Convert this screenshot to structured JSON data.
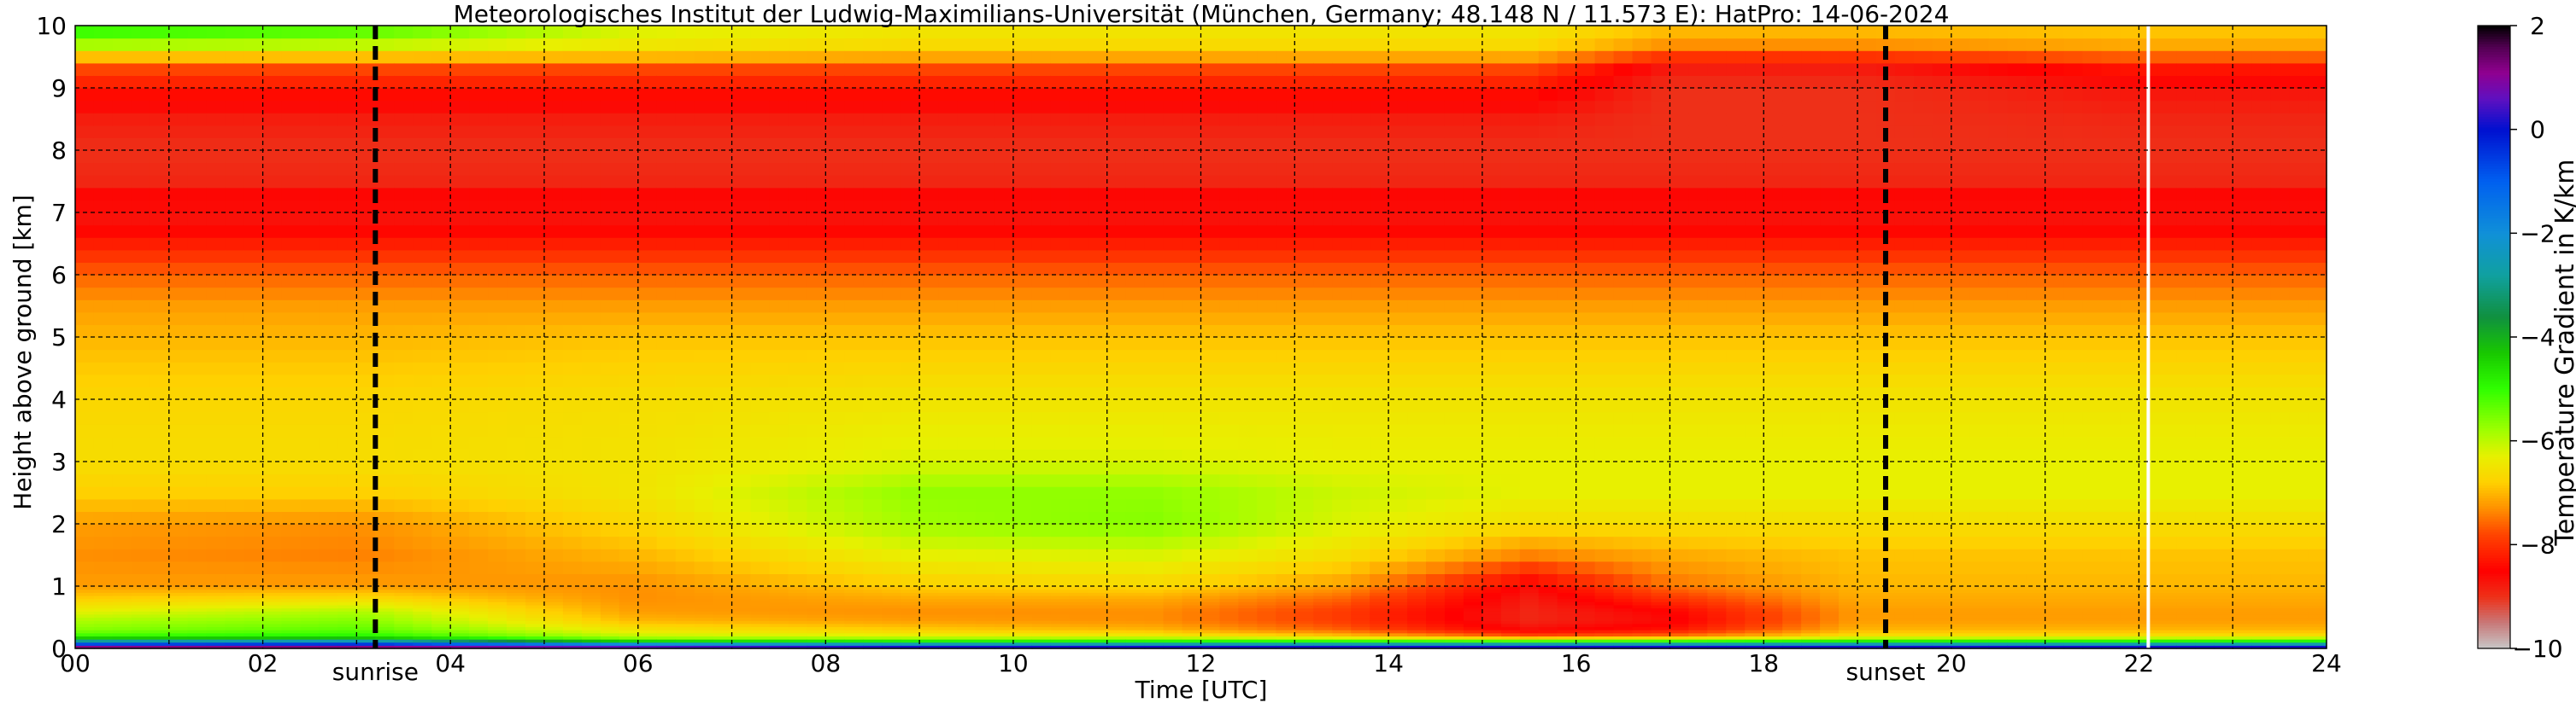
{
  "chart_data": {
    "type": "heatmap",
    "title": "Meteorologisches Institut der Ludwig-Maximilians-Universität (München, Germany; 48.148 N / 11.573 E):    HatPro: 14-06-2024",
    "xlabel": "Time [UTC]",
    "ylabel": "Height above ground [km]",
    "xlim": [
      0,
      24
    ],
    "ylim": [
      0,
      10
    ],
    "x_ticks": [
      "00",
      "02",
      "04",
      "06",
      "08",
      "10",
      "12",
      "14",
      "16",
      "18",
      "20",
      "22",
      "24"
    ],
    "y_ticks": [
      "0",
      "1",
      "2",
      "3",
      "4",
      "5",
      "6",
      "7",
      "8",
      "9",
      "10"
    ],
    "grid": true,
    "markers": [
      {
        "name": "sunrise",
        "label": "sunrise",
        "time": 3.2
      },
      {
        "name": "sunset",
        "label": "sunset",
        "time": 19.3
      }
    ],
    "data_gap_time": 22.1,
    "colorbar": {
      "label": "Temperature Gradient in K/km",
      "range": [
        -10,
        2
      ],
      "ticks": [
        "2",
        "0",
        "−2",
        "−4",
        "−6",
        "−8",
        "−10"
      ],
      "stops": [
        {
          "v": -10.0,
          "c": "#c8c8c8"
        },
        {
          "v": -9.5,
          "c": "#c87878"
        },
        {
          "v": -9.0,
          "c": "#ee3018"
        },
        {
          "v": -8.5,
          "c": "#ff0000"
        },
        {
          "v": -7.8,
          "c": "#ff4400"
        },
        {
          "v": -7.3,
          "c": "#ff9000"
        },
        {
          "v": -6.8,
          "c": "#ffd000"
        },
        {
          "v": -6.3,
          "c": "#e8f000"
        },
        {
          "v": -5.8,
          "c": "#a0ff00"
        },
        {
          "v": -5.0,
          "c": "#30ff00"
        },
        {
          "v": -4.3,
          "c": "#18c800"
        },
        {
          "v": -3.6,
          "c": "#109040"
        },
        {
          "v": -2.8,
          "c": "#10a0a0"
        },
        {
          "v": -2.0,
          "c": "#1090d8"
        },
        {
          "v": -1.0,
          "c": "#0060f0"
        },
        {
          "v": 0.0,
          "c": "#0010d0"
        },
        {
          "v": 0.6,
          "c": "#6010c0"
        },
        {
          "v": 1.1,
          "c": "#900090"
        },
        {
          "v": 1.6,
          "c": "#500050"
        },
        {
          "v": 2.0,
          "c": "#000000"
        }
      ]
    },
    "profile_heights_km": [
      0,
      0.05,
      0.1,
      0.15,
      0.2,
      0.3,
      0.45,
      0.6,
      0.8,
      1.0,
      1.5,
      2.0,
      2.5,
      3.0,
      4.0,
      5.0,
      5.5,
      6.0,
      6.5,
      7.0,
      7.2,
      7.5,
      8.0,
      8.5,
      9.0,
      9.3,
      9.6,
      9.8,
      10.0
    ],
    "profiles": [
      {
        "time": 0,
        "values": [
          1.8,
          0.5,
          -2,
          -3.8,
          -5,
          -5.6,
          -5.9,
          -6.3,
          -6.8,
          -7.2,
          -7.3,
          -7.2,
          -6.8,
          -6.6,
          -6.7,
          -7.0,
          -7.2,
          -7.6,
          -8.2,
          -8.8,
          -8.4,
          -8.9,
          -9.0,
          -8.8,
          -8.3,
          -7.8,
          -6.5,
          -5.2,
          -5.0
        ]
      },
      {
        "time": 3,
        "values": [
          1.8,
          0.6,
          -1.5,
          -3.6,
          -4.8,
          -5.3,
          -5.6,
          -5.9,
          -6.6,
          -7.2,
          -7.4,
          -7.3,
          -6.8,
          -6.6,
          -6.7,
          -7.0,
          -7.2,
          -7.6,
          -8.2,
          -8.8,
          -8.4,
          -8.9,
          -9.0,
          -8.8,
          -8.3,
          -7.8,
          -6.5,
          -5.5,
          -5.2
        ]
      },
      {
        "time": 6,
        "values": [
          1.5,
          -0.5,
          -3.5,
          -5.5,
          -6.0,
          -6.5,
          -7.0,
          -7.2,
          -7.3,
          -7.3,
          -7.0,
          -6.7,
          -6.5,
          -6.5,
          -6.6,
          -6.9,
          -7.2,
          -7.6,
          -8.2,
          -8.8,
          -8.4,
          -8.9,
          -9.0,
          -8.8,
          -8.3,
          -7.8,
          -6.6,
          -6.3,
          -6.2
        ]
      },
      {
        "time": 9,
        "values": [
          1.2,
          -1.0,
          -4.0,
          -5.6,
          -6.2,
          -6.8,
          -7.2,
          -7.3,
          -7.1,
          -6.8,
          -6.3,
          -5.8,
          -5.7,
          -6.2,
          -6.5,
          -6.9,
          -7.2,
          -7.6,
          -8.2,
          -8.8,
          -8.4,
          -8.9,
          -9.0,
          -8.8,
          -8.3,
          -7.8,
          -6.8,
          -6.5,
          -6.5
        ]
      },
      {
        "time": 11.5,
        "values": [
          1.2,
          -1.0,
          -4.2,
          -5.6,
          -6.3,
          -7.0,
          -7.3,
          -7.3,
          -7.1,
          -6.7,
          -6.2,
          -5.6,
          -5.7,
          -6.2,
          -6.5,
          -6.9,
          -7.2,
          -7.6,
          -8.2,
          -8.8,
          -8.4,
          -8.9,
          -9.0,
          -8.8,
          -8.3,
          -7.8,
          -6.8,
          -6.5,
          -6.5
        ]
      },
      {
        "time": 13.5,
        "values": [
          1.2,
          -1.0,
          -4.3,
          -5.8,
          -6.8,
          -7.6,
          -7.9,
          -7.9,
          -7.6,
          -7.2,
          -6.6,
          -6.2,
          -6.1,
          -6.3,
          -6.5,
          -6.9,
          -7.2,
          -7.6,
          -8.2,
          -8.8,
          -8.4,
          -8.9,
          -9.0,
          -8.8,
          -8.3,
          -7.8,
          -6.8,
          -6.5,
          -6.5
        ]
      },
      {
        "time": 15.5,
        "values": [
          1.2,
          -1.0,
          -4.3,
          -6.2,
          -7.6,
          -8.6,
          -8.9,
          -8.9,
          -8.8,
          -8.6,
          -7.4,
          -6.6,
          -6.3,
          -6.3,
          -6.5,
          -6.9,
          -7.2,
          -7.6,
          -8.2,
          -8.8,
          -8.4,
          -8.9,
          -9.0,
          -8.8,
          -8.3,
          -7.8,
          -6.8,
          -6.5,
          -6.5
        ]
      },
      {
        "time": 17,
        "values": [
          1.2,
          -1.0,
          -4.3,
          -6.0,
          -7.4,
          -8.3,
          -8.6,
          -8.5,
          -8.0,
          -7.5,
          -7.1,
          -6.6,
          -6.3,
          -6.3,
          -6.5,
          -6.9,
          -7.2,
          -7.6,
          -8.2,
          -8.8,
          -8.4,
          -8.9,
          -9.0,
          -9.0,
          -9.0,
          -8.8,
          -7.6,
          -7.0,
          -7.0
        ]
      },
      {
        "time": 19,
        "values": [
          1.2,
          -1.0,
          -4.0,
          -5.6,
          -6.5,
          -7.0,
          -7.2,
          -7.2,
          -7.1,
          -7.0,
          -6.9,
          -6.6,
          -6.3,
          -6.3,
          -6.5,
          -6.9,
          -7.2,
          -7.6,
          -8.2,
          -8.8,
          -8.4,
          -8.9,
          -9.0,
          -9.0,
          -9.0,
          -8.8,
          -7.6,
          -7.0,
          -7.0
        ]
      },
      {
        "time": 22,
        "values": [
          1.2,
          -1.0,
          -4.2,
          -5.6,
          -6.5,
          -7.0,
          -7.2,
          -7.2,
          -7.1,
          -7.0,
          -6.9,
          -6.6,
          -6.3,
          -6.3,
          -6.5,
          -6.9,
          -7.2,
          -7.6,
          -8.2,
          -8.8,
          -8.4,
          -8.9,
          -9.0,
          -8.9,
          -8.7,
          -8.3,
          -7.3,
          -6.9,
          -6.9
        ]
      },
      {
        "time": 24,
        "values": [
          1.2,
          -1.0,
          -4.2,
          -5.6,
          -6.5,
          -7.0,
          -7.2,
          -7.2,
          -7.1,
          -7.0,
          -6.9,
          -6.6,
          -6.3,
          -6.3,
          -6.5,
          -6.9,
          -7.2,
          -7.6,
          -8.2,
          -8.8,
          -8.4,
          -8.9,
          -9.0,
          -8.9,
          -8.7,
          -8.3,
          -7.3,
          -6.9,
          -6.9
        ]
      }
    ]
  }
}
